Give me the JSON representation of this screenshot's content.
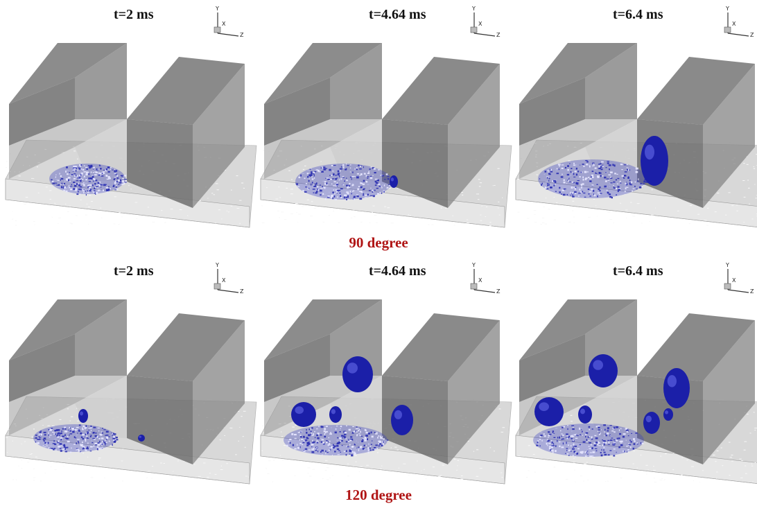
{
  "rows": [
    {
      "caption": "90 degree",
      "panels": [
        {
          "time": "t=2 ms"
        },
        {
          "time": "t=4.64 ms"
        },
        {
          "time": "t=6.4 ms"
        }
      ]
    },
    {
      "caption": "120 degree",
      "panels": [
        {
          "time": "t=2 ms"
        },
        {
          "time": "t=4.64 ms"
        },
        {
          "time": "t=6.4 ms"
        }
      ]
    }
  ],
  "axis_triad": {
    "y": "Y",
    "x": "X",
    "z": "Z"
  },
  "colors": {
    "wall": "#6e6e6e",
    "wall_light": "#9a9a9a",
    "floor": "#d8d8d8",
    "foam": "#2a2fb0",
    "bubble": "#1b1fa8",
    "caption": "#b01515"
  }
}
